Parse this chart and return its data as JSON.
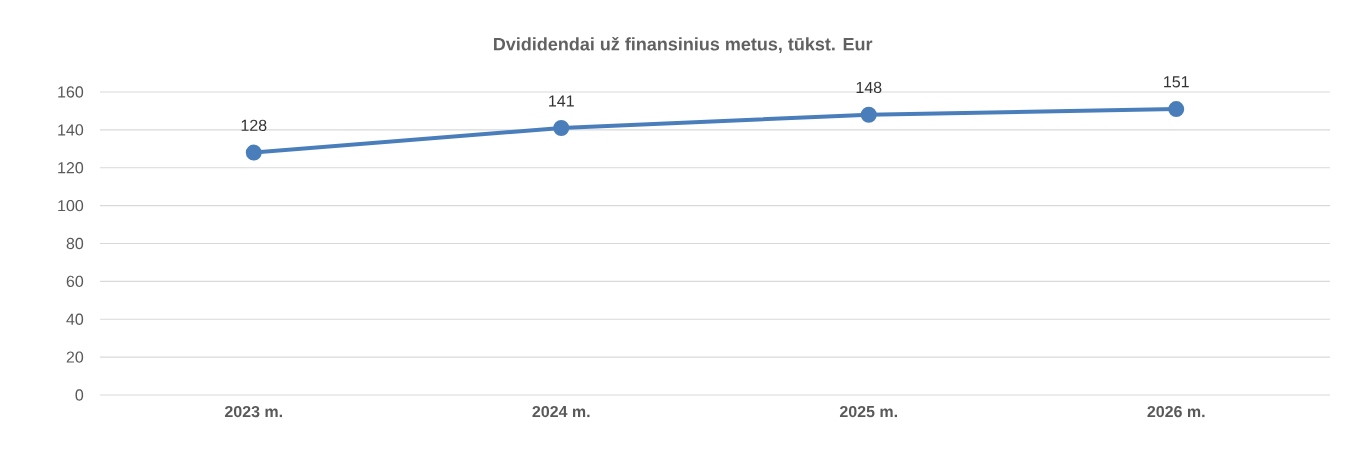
{
  "chart_data": {
    "type": "line",
    "title": "Dvididendai už finansinius metus, tūkst. Eur",
    "categories": [
      "2023 m.",
      "2024 m.",
      "2025 m.",
      "2026 m."
    ],
    "values": [
      128,
      141,
      148,
      151
    ],
    "color": "#4a7ebb",
    "ylim": [
      0,
      160
    ],
    "yticks": [
      0,
      20,
      40,
      60,
      80,
      100,
      120,
      140,
      160
    ],
    "grid": "y",
    "marker": "circle",
    "line_style": "solid",
    "data_labels": true
  }
}
